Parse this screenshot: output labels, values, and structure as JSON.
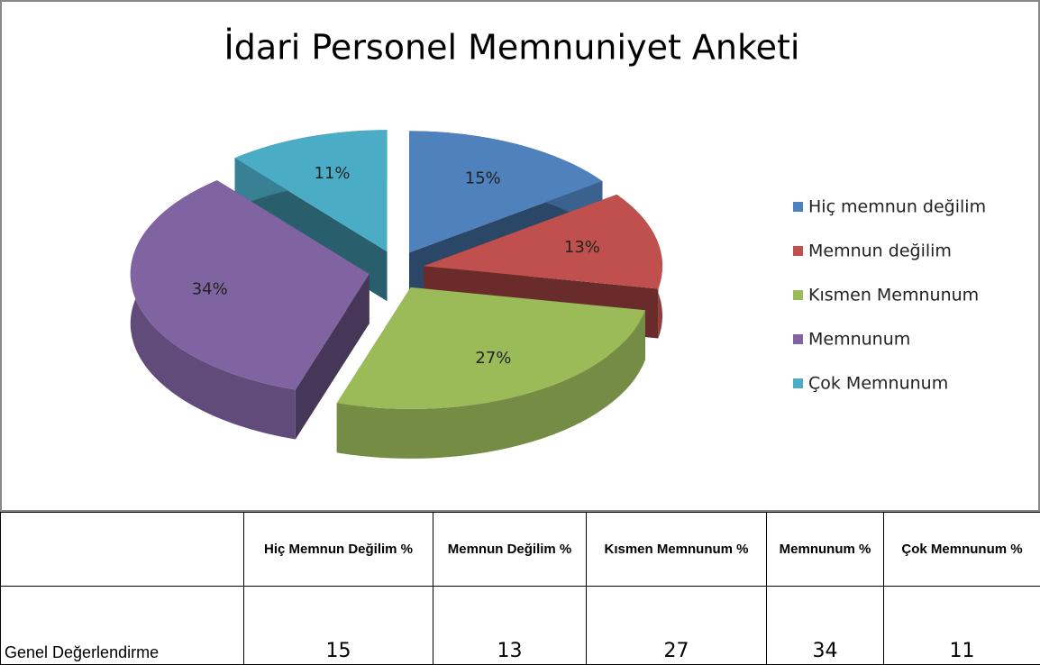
{
  "chart_data": {
    "type": "pie",
    "title": "İdari Personel Memnuniyet Anketi",
    "categories": [
      "Hiç memnun değilim",
      "Memnun değilim",
      "Kısmen Memnunum",
      "Memnunum",
      "Çok Memnunum"
    ],
    "values": [
      15,
      13,
      27,
      34,
      11
    ],
    "value_labels": [
      "15%",
      "13%",
      "27%",
      "34%",
      "11%"
    ],
    "colors": [
      "#4f81bd",
      "#c0504d",
      "#9bbb59",
      "#8064a2",
      "#4bacc6"
    ],
    "legend": "right"
  },
  "table": {
    "columns": [
      "Hiç Memnun Değilim %",
      "Memnun Değilim %",
      "Kısmen Memnunum %",
      "Memnunum %",
      "Çok Memnunum %"
    ],
    "rows": [
      {
        "label": "Genel Değerlendirme",
        "values": [
          15,
          13,
          27,
          34,
          11
        ]
      }
    ]
  }
}
